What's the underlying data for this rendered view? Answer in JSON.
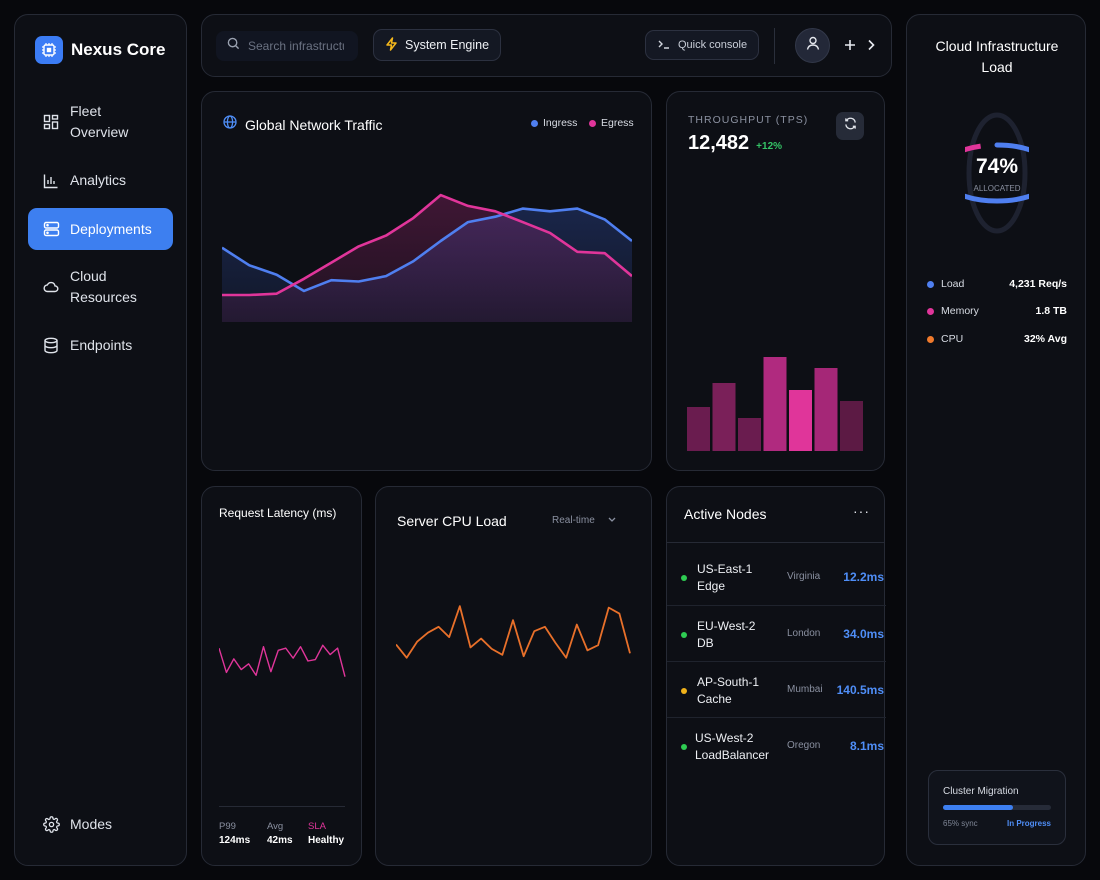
{
  "sidebar": {
    "brand": "Nexus Core",
    "items": [
      {
        "label": "Fleet\nOverview",
        "icon": "grid-icon",
        "active": false
      },
      {
        "label": "Analytics",
        "icon": "bar-chart-icon",
        "active": false
      },
      {
        "label": "Deployments",
        "icon": "server-icon",
        "active": true
      },
      {
        "label": "Cloud\nResources",
        "icon": "cloud-icon",
        "active": false
      },
      {
        "label": "Endpoints",
        "icon": "database-icon",
        "active": false
      }
    ],
    "footer_item": {
      "label": "Modes",
      "icon": "gear-icon"
    }
  },
  "topbar": {
    "search_placeholder": "Search infrastructure",
    "system_engine_label": "System Engine",
    "quick_console_label": "Quick console"
  },
  "traffic": {
    "title": "Global Network Traffic",
    "legend": [
      {
        "name": "Ingress",
        "color": "#4f7ff0"
      },
      {
        "name": "Egress",
        "color": "#e0359a"
      }
    ],
    "chart_data": {
      "type": "area",
      "series": [
        {
          "name": "Ingress",
          "values": [
            55,
            42,
            35,
            23,
            31,
            30,
            34,
            45,
            60,
            74,
            78,
            84,
            82,
            84,
            76,
            60
          ]
        },
        {
          "name": "Egress",
          "values": [
            20,
            20,
            21,
            32,
            44,
            56,
            64,
            77,
            94,
            86,
            82,
            74,
            66,
            52,
            51,
            34
          ]
        }
      ]
    }
  },
  "throughput": {
    "label": "THROUGHPUT (TPS)",
    "value": "12,482",
    "change": "+12%",
    "chart_data": {
      "type": "bar",
      "values": [
        44,
        68,
        33,
        94,
        61,
        83,
        50
      ]
    }
  },
  "cloud_load": {
    "title": "Cloud Infrastructure Load",
    "percent": "74%",
    "percent_value": 0.74,
    "sub": "ALLOCATED",
    "stats": [
      {
        "label": "Load",
        "value": "4,231 Req/s",
        "color": "#4f7ff0"
      },
      {
        "label": "Memory",
        "value": "1.8 TB",
        "color": "#e0359a"
      },
      {
        "label": "CPU",
        "value": "32% Avg",
        "color": "#f07a2c"
      }
    ],
    "migration": {
      "title": "Cluster Migration",
      "progress": 0.65,
      "progress_label": "65% sync",
      "status": "In Progress"
    }
  },
  "latency": {
    "title": "Request Latency (ms)",
    "chart_data": {
      "type": "line",
      "values": [
        60,
        26,
        45,
        30,
        38,
        22,
        62,
        27,
        57,
        60,
        46,
        62,
        42,
        44,
        64,
        51,
        60,
        20
      ]
    },
    "footer": [
      {
        "label": "P99",
        "value": "124ms"
      },
      {
        "label": "Avg",
        "value": "42ms"
      },
      {
        "label": "SLA",
        "value": "Healthy"
      }
    ]
  },
  "cpu": {
    "title": "Server CPU Load",
    "range_label": "Real-time",
    "chart_data": {
      "type": "line",
      "values": [
        36,
        18,
        40,
        52,
        60,
        46,
        88,
        32,
        44,
        30,
        22,
        69,
        20,
        54,
        60,
        38,
        18,
        63,
        28,
        35,
        86,
        78,
        24
      ]
    }
  },
  "nodes": {
    "title": "Active Nodes",
    "items": [
      {
        "name": "US-East-1\nEdge",
        "location": "Virginia",
        "latency": "12.2ms",
        "color": "#2ecc52"
      },
      {
        "name": "EU-West-2\nDB",
        "location": "London",
        "latency": "34.0ms",
        "color": "#2ecc52"
      },
      {
        "name": "AP-South-1\nCache",
        "location": "Mumbai",
        "latency": "140.5ms",
        "color": "#f0b21a"
      },
      {
        "name": "US-West-2\nLoadBalancer",
        "location": "Oregon",
        "latency": "8.1ms",
        "color": "#2ecc52"
      }
    ]
  }
}
